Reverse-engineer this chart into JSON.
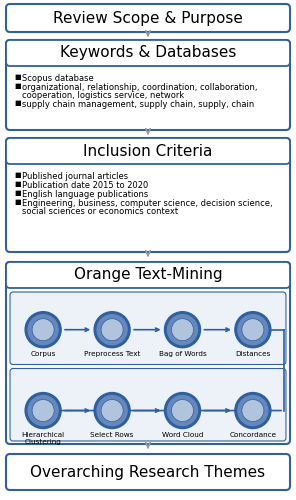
{
  "background_color": "#ffffff",
  "border_color": "#3060a0",
  "box1_label": "Review Scope & Purpose",
  "box2_label": "Keywords & Databases",
  "box2_bullets": [
    "Scopus database",
    "organizational, relationship, coordination, collaboration,\n    cooperation, logistics service, network",
    "supply chain management, supply chain, supply, chain"
  ],
  "box3_label": "Inclusion Criteria",
  "box3_bullets": [
    "Published journal articles",
    "Publication date 2015 to 2020",
    "English language publications",
    "Engineering, business, computer science, decision science,\n    social sciences or economics context"
  ],
  "box4_label": "Orange Text-Mining",
  "box5_label": "Overarching Research Themes",
  "arrow_color": "#999999",
  "node_dark": "#2e5fa3",
  "node_mid": "#6688bb",
  "node_light": "#b0c4de",
  "row1_labels": [
    "Corpus",
    "Preprocess Text",
    "Bag of Words",
    "Distances"
  ],
  "row2_labels": [
    "Hierarchical\nClustering",
    "Select Rows",
    "Word Cloud",
    "Concordance"
  ],
  "header_fs": 11,
  "bullet_fs": 6.0
}
